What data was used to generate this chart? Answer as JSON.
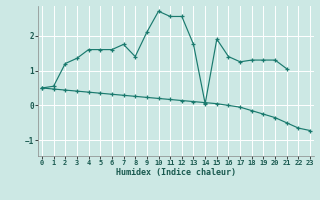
{
  "xlabel": "Humidex (Indice chaleur)",
  "bg_color": "#cce8e4",
  "line_color": "#1a7a6e",
  "grid_color": "#ffffff",
  "xlim": [
    -0.3,
    23.3
  ],
  "ylim": [
    -1.45,
    2.85
  ],
  "yticks": [
    -1,
    0,
    1,
    2
  ],
  "xticks": [
    0,
    1,
    2,
    3,
    4,
    5,
    6,
    7,
    8,
    9,
    10,
    11,
    12,
    13,
    14,
    15,
    16,
    17,
    18,
    19,
    20,
    21,
    22,
    23
  ],
  "curve1_x": [
    0,
    1,
    2,
    3,
    4,
    5,
    6,
    7,
    8,
    9,
    10,
    11,
    12,
    13,
    14,
    15,
    16,
    17,
    18,
    19,
    20,
    21
  ],
  "curve1_y": [
    0.5,
    0.55,
    1.2,
    1.35,
    1.6,
    1.6,
    1.6,
    1.75,
    1.4,
    2.1,
    2.7,
    2.55,
    2.55,
    1.75,
    0.05,
    1.9,
    1.4,
    1.25,
    1.3,
    1.3,
    1.3,
    1.05
  ],
  "curve2_x": [
    0,
    1,
    2,
    3,
    4,
    5,
    6,
    7,
    8,
    9,
    10,
    11,
    12,
    13,
    14,
    15,
    16,
    17,
    18,
    19,
    20,
    21,
    22,
    23
  ],
  "curve2_y": [
    0.5,
    0.47,
    0.44,
    0.41,
    0.38,
    0.35,
    0.32,
    0.29,
    0.26,
    0.23,
    0.2,
    0.17,
    0.14,
    0.11,
    0.08,
    0.05,
    0.0,
    -0.05,
    -0.15,
    -0.25,
    -0.35,
    -0.5,
    -0.65,
    -0.72
  ]
}
